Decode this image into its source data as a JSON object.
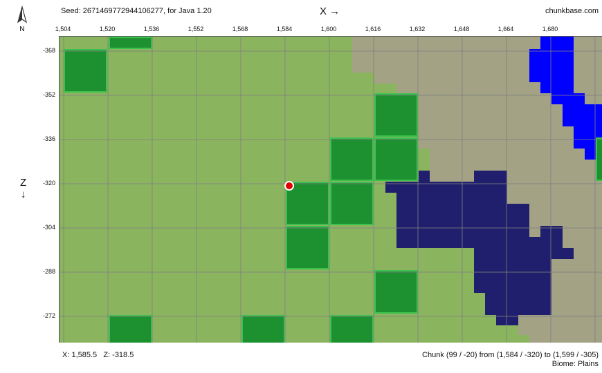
{
  "header": {
    "seed_text": "Seed: 2671469772944106277, for Java 1.20",
    "site": "chunkbase.com",
    "x_axis_label": "X →",
    "z_axis_label": "Z",
    "z_arrow": "↓",
    "compass_letter": "N"
  },
  "x_ticks": [
    "1,504",
    "1,520",
    "1,536",
    "1,552",
    "1,568",
    "1,584",
    "1,600",
    "1,616",
    "1,632",
    "1,648",
    "1,664",
    "1,680"
  ],
  "z_ticks": [
    "-368",
    "-352",
    "-336",
    "-320",
    "-304",
    "-288",
    "-272"
  ],
  "footer": {
    "coords": "X: 1,585.5   Z: -318.5",
    "chunk": "Chunk (99 / -20) from (1,584 / -320) to (1,599 / -305)",
    "biome": "Biome: Plains"
  },
  "colors": {
    "plains": "#8ab45e",
    "dark_forest_tile": "#1d9130",
    "tile_border": "#3cc24e",
    "stony": "#a3a285",
    "river": "#0000ff",
    "ocean": "#1f1f6d",
    "grid": "#808080",
    "marker": "#e00000"
  }
}
